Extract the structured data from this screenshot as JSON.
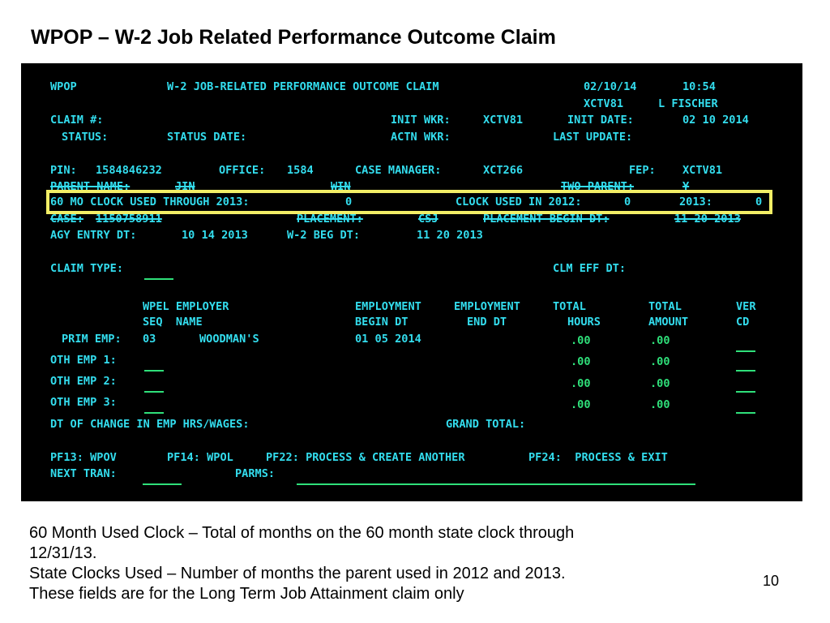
{
  "slide": {
    "title": "WPOP – W-2 Job Related Performance Outcome Claim",
    "page_number": "10",
    "caption_lines": [
      "60 Month Used Clock – Total of months on the 60 month state clock through",
      "12/31/13.",
      "State Clocks Used – Number of months the parent used in 2012 and 2013.",
      "These fields are for the Long Term Job Attainment claim only"
    ]
  },
  "screen": {
    "tran_code": "WPOP",
    "screen_title": "W-2 JOB-RELATED PERFORMANCE OUTCOME CLAIM",
    "date": "02/10/14",
    "time": "10:54",
    "user_id": "XCTV81",
    "user_name": "L FISCHER",
    "claim_no_label": "CLAIM #:",
    "init_wkr_label": "INIT WKR:",
    "init_wkr_value": "XCTV81",
    "init_date_label": "INIT DATE:",
    "init_date_value": "02 10 2014",
    "status_label": "STATUS:",
    "status_date_label": "STATUS DATE:",
    "actn_wkr_label": "ACTN WKR:",
    "last_update_label": "LAST UPDATE:",
    "pin_label": "PIN:",
    "pin_value": "1584846232",
    "office_label": "OFFICE:",
    "office_value": "1584",
    "case_manager_label": "CASE MANAGER:",
    "case_manager_value": "XCT266",
    "fep_label": "FEP:",
    "fep_value": "XCTV81",
    "parent_name_label": "PARENT NAME:",
    "parent_name_value": "JIN",
    "win_label": "WIN",
    "two_parent_label": "TWO PARENT:",
    "two_parent_value": "Y",
    "clock60_label": "60 MO CLOCK USED THROUGH 2013:",
    "clock60_value": "0",
    "clock2012_label": "CLOCK USED IN 2012:",
    "clock2012_value": "0",
    "clock2013_label": "2013:",
    "clock2013_value": "0",
    "case_label": "CASE:",
    "case_value": "1150758911",
    "placement_label": "PLACEMENT:",
    "placement_value": "CSJ",
    "placement_begin_label": "PLACEMENT BEGIN DT:",
    "placement_begin_value": "11 20 2013",
    "agy_entry_label": "AGY ENTRY DT:",
    "agy_entry_value": "10 14 2013",
    "w2_beg_label": "W-2 BEG DT:",
    "w2_beg_value": "11 20 2013",
    "claim_type_label": "CLAIM TYPE:",
    "clm_eff_label": "CLM EFF DT:",
    "columns": {
      "wpel_1": "WPEL EMPLOYER",
      "wpel_2": "SEQ  NAME",
      "empl_begin_1": "EMPLOYMENT",
      "empl_begin_2": "BEGIN DT",
      "empl_end_1": "EMPLOYMENT",
      "empl_end_2": "END DT",
      "total_hours_1": "TOTAL",
      "total_hours_2": "HOURS",
      "total_amount_1": "TOTAL",
      "total_amount_2": "AMOUNT",
      "ver_1": "VER",
      "ver_2": "CD"
    },
    "prim_emp": {
      "label": "PRIM EMP:",
      "seq": "03",
      "name": "WOODMAN'S",
      "begin_dt": "01 05 2014",
      "hours": ".00",
      "amount": ".00"
    },
    "oth_emps": [
      {
        "label": "OTH EMP 1:",
        "hours": ".00",
        "amount": ".00"
      },
      {
        "label": "OTH EMP 2:",
        "hours": ".00",
        "amount": ".00"
      },
      {
        "label": "OTH EMP 3:",
        "hours": ".00",
        "amount": ".00"
      }
    ],
    "dt_change_label": "DT OF CHANGE IN EMP HRS/WAGES:",
    "grand_total_label": "GRAND TOTAL:",
    "pf_keys": {
      "pf13": "PF13: WPOV",
      "pf14": "PF14: WPOL",
      "pf22": "PF22: PROCESS & CREATE ANOTHER",
      "pf24": "PF24:  PROCESS & EXIT"
    },
    "next_tran_label": "NEXT TRAN:",
    "parms_label": "PARMS:"
  },
  "colors": {
    "terminal_bg": "#000000",
    "label_text": "#33ddee",
    "input_text": "#2fe07a",
    "highlight": "#f2ee66"
  }
}
